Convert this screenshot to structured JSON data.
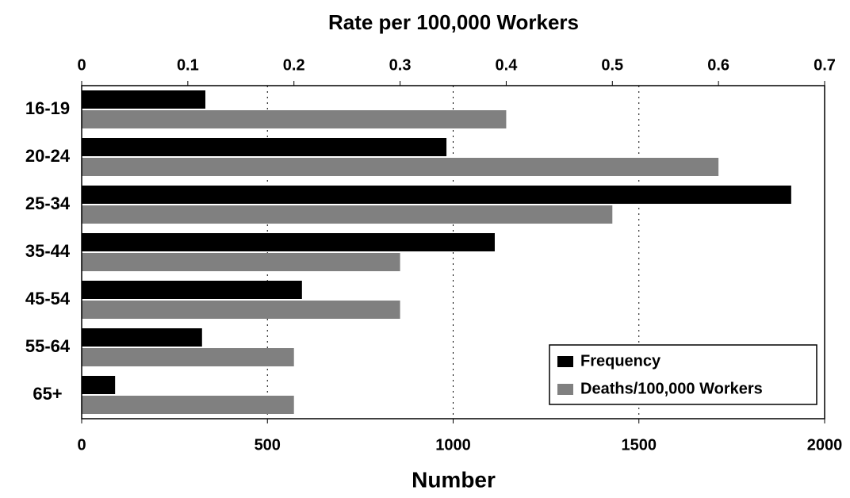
{
  "chart_data": {
    "type": "bar",
    "orientation": "horizontal",
    "title": "Rate per 100,000 Workers",
    "x_label": "Number",
    "categories": [
      "16-19",
      "20-24",
      "25-34",
      "35-44",
      "45-54",
      "55-64",
      "65+"
    ],
    "series": [
      {
        "name": "Frequency",
        "color": "#000000",
        "axis": "x",
        "values": [
          333,
          982,
          1910,
          1112,
          593,
          324,
          90
        ]
      },
      {
        "name": "Deaths/100,000 Workers",
        "color": "#808080",
        "axis": "x2",
        "values": [
          0.4,
          0.6,
          0.5,
          0.3,
          0.3,
          0.2,
          0.2
        ]
      }
    ],
    "xlim": [
      0,
      2000
    ],
    "xticks": [
      0,
      500,
      1000,
      1500,
      2000
    ],
    "x2lim": [
      0,
      0.7
    ],
    "x2ticks": [
      0,
      0.1,
      0.2,
      0.3,
      0.4,
      0.5,
      0.6,
      0.7
    ],
    "grid": true,
    "legend": "lower right"
  }
}
